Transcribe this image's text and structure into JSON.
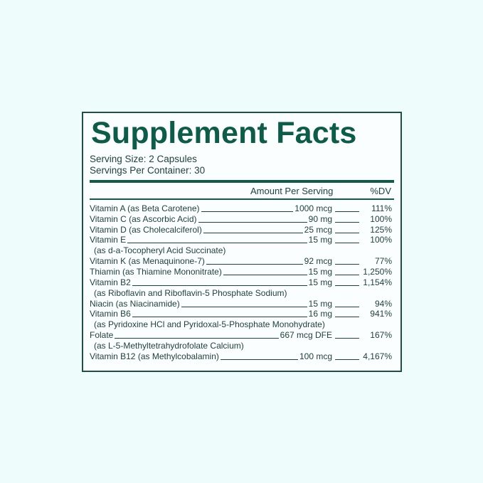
{
  "title": "Supplement Facts",
  "serving_size": "Serving Size: 2 Capsules",
  "servings_per_container": "Servings Per Container: 30",
  "header": {
    "amount": "Amount Per Serving",
    "dv": "%DV"
  },
  "colors": {
    "accent": "#0f5a49",
    "background": "#effcfc"
  },
  "rows": [
    {
      "name": "Vitamin A (as Beta Carotene)",
      "amount": "1000 mcg",
      "dv": "111%"
    },
    {
      "name": "Vitamin C (as Ascorbic Acid)",
      "amount": "90 mg",
      "dv": "100%"
    },
    {
      "name": "Vitamin D (as Cholecalciferol)",
      "amount": "25 mcg",
      "dv": "125%"
    },
    {
      "name": "Vitamin E",
      "amount": "15 mg",
      "dv": "100%"
    },
    {
      "sub": "(as d-a-Tocopheryl Acid Succinate)"
    },
    {
      "name": "Vitamin K (as Menaquinone-7)",
      "amount": "92 mcg",
      "dv": "77%"
    },
    {
      "name": "Thiamin (as Thiamine Mononitrate)",
      "amount": "15 mg",
      "dv": "1,250%"
    },
    {
      "name": "Vitamin B2",
      "amount": "15 mg",
      "dv": "1,154%"
    },
    {
      "sub": "(as Riboflavin and Riboflavin-5 Phosphate Sodium)"
    },
    {
      "name": "Niacin (as Niacinamide)",
      "amount": "15 mg",
      "dv": "94%"
    },
    {
      "name": "Vitamin B6",
      "amount": "16 mg",
      "dv": "941%"
    },
    {
      "sub": "(as Pyridoxine HCl and Pyridoxal-5-Phosphate Monohydrate)"
    },
    {
      "name": "Folate",
      "amount": "667 mcg DFE",
      "dv": "167%"
    },
    {
      "sub": "(as L-5-Methyltetrahydrofolate Calcium)"
    },
    {
      "name": "Vitamin B12 (as Methylcobalamin)",
      "amount": "100 mcg",
      "dv": "4,167%"
    }
  ]
}
